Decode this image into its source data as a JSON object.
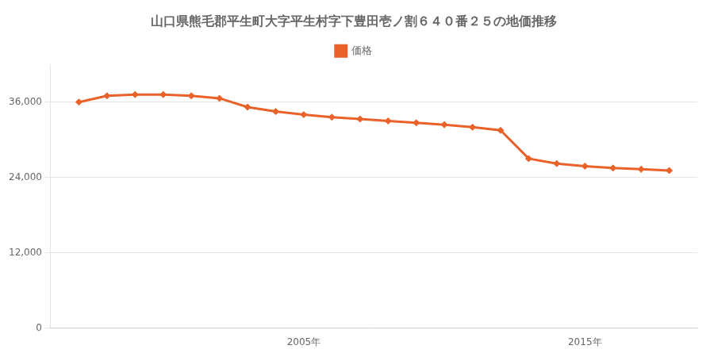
{
  "chart_data": {
    "type": "line",
    "title": "山口県熊毛郡平生町大字平生村字下豊田壱ノ割６４０番２５の地価推移",
    "x": [
      1997,
      1998,
      1999,
      2000,
      2001,
      2002,
      2003,
      2004,
      2005,
      2006,
      2007,
      2008,
      2009,
      2010,
      2011,
      2012,
      2013,
      2014,
      2015,
      2016,
      2017,
      2018
    ],
    "series": [
      {
        "name": "価格",
        "color": "#E8622A",
        "marker": "diamond",
        "values": [
          36000,
          37000,
          37200,
          37200,
          37000,
          36600,
          35200,
          34500,
          34000,
          33600,
          33300,
          33000,
          32700,
          32400,
          32000,
          31500,
          27000,
          26200,
          25800,
          25500,
          25300,
          25100
        ]
      }
    ],
    "xlim": [
      1996,
      2019
    ],
    "xticks": [
      {
        "value": 2005,
        "label": "2005年"
      },
      {
        "value": 2015,
        "label": "2015年"
      }
    ],
    "ylim": [
      0,
      42000
    ],
    "yticks": [
      0,
      {
        "value": 12000,
        "label": "12,000"
      },
      {
        "value": 24000,
        "label": "24,000"
      },
      {
        "value": 36000,
        "label": "36,000"
      }
    ],
    "grid": "y",
    "legend": "top"
  }
}
